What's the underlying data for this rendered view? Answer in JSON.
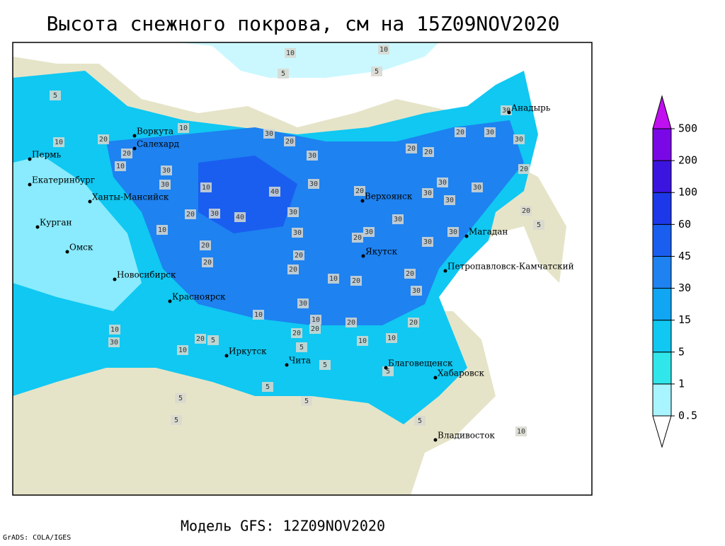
{
  "title": "Высота снежного покрова, см на 15Z09NOV2020",
  "footer": {
    "model": "Модель GFS: 12Z09NOV2020",
    "credit": "GrADS: COLA/IGES"
  },
  "map": {
    "cities": [
      "Воркута",
      "Салехард",
      "Пермь",
      "Екатеринбург",
      "Ханты-Мансийск",
      "Курган",
      "Омск",
      "Новосибирск",
      "Красноярск",
      "Иркутск",
      "Чита",
      "Верхоянск",
      "Якутск",
      "Магадан",
      "Петропавловск-Камчатский",
      "Анадырь",
      "Благовещенск",
      "Хабаровск",
      "Владивосток"
    ],
    "contour_labels": [
      "10",
      "10",
      "5",
      "5",
      "5",
      "30",
      "10",
      "30",
      "20",
      "30",
      "20",
      "20",
      "30",
      "10",
      "20",
      "30",
      "20",
      "20",
      "10",
      "20",
      "30",
      "30",
      "30",
      "30",
      "20",
      "30",
      "10",
      "40",
      "30",
      "30",
      "20",
      "30",
      "40",
      "30",
      "30",
      "20",
      "30",
      "30",
      "10",
      "30",
      "20",
      "30",
      "20",
      "20",
      "20",
      "20",
      "20",
      "10",
      "20",
      "30",
      "30",
      "10",
      "10",
      "20",
      "20",
      "20",
      "20",
      "10",
      "10",
      "10",
      "30",
      "20",
      "5",
      "10",
      "5",
      "5",
      "5",
      "5",
      "5",
      "5",
      "5",
      "10",
      "5",
      "5"
    ]
  },
  "colorbar": {
    "levels": [
      0.5,
      1,
      5,
      15,
      30,
      45,
      60,
      100,
      200,
      500
    ],
    "colors": [
      "#ffffff",
      "#a8f4ff",
      "#30e6ea",
      "#10c8f2",
      "#10a6f4",
      "#1e82f0",
      "#1a5ef0",
      "#1c38e8",
      "#3c14e0",
      "#7a08e6",
      "#c010f0"
    ]
  }
}
